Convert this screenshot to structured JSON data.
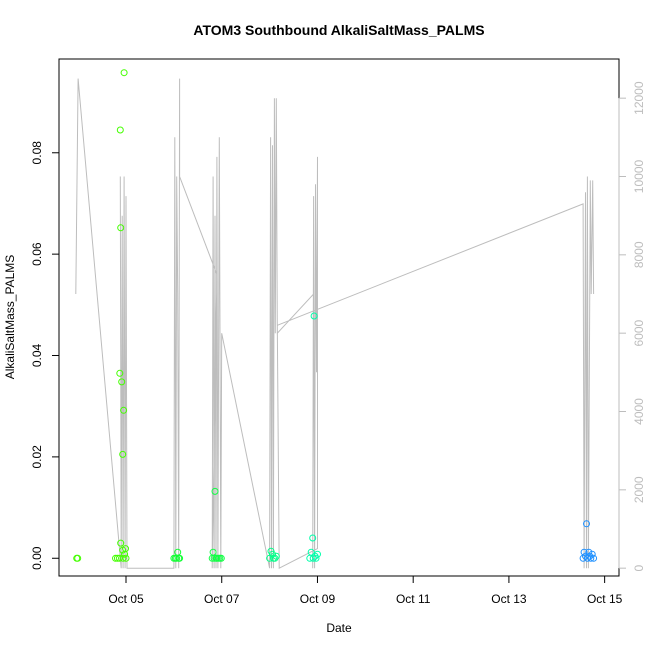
{
  "chart_data": {
    "type": "scatter",
    "title": "ATOM3 Southbound AlkaliSaltMass_PALMS",
    "xlabel": "Date",
    "ylabel": "AlkaliSaltMass_PALMS",
    "y2label": "",
    "x_unit": "day of October 2017",
    "xlim": [
      3.6,
      15.3
    ],
    "ylim": [
      -0.0035,
      0.0985
    ],
    "y2lim": [
      -200,
      13000
    ],
    "x_ticks": [
      5,
      7,
      9,
      11,
      13,
      15
    ],
    "x_tick_labels": [
      "Oct 05",
      "Oct 07",
      "Oct 09",
      "Oct 11",
      "Oct 13",
      "Oct 15"
    ],
    "y_ticks": [
      0.0,
      0.02,
      0.04,
      0.06,
      0.08
    ],
    "y_tick_labels": [
      "0.00",
      "0.02",
      "0.04",
      "0.06",
      "0.08"
    ],
    "y2_ticks": [
      0,
      2000,
      4000,
      6000,
      8000,
      10000,
      12000
    ],
    "y2_tick_labels": [
      "0",
      "2000",
      "4000",
      "6000",
      "8000",
      "10000",
      "12000"
    ],
    "grid": false,
    "legend": "none",
    "colors": {
      "altitude_line": "#bdbdbd",
      "points_early": "#33ff00",
      "points_mid": "#00ff55",
      "points_late": "#00ffaa",
      "points_last": "#1e90ff"
    },
    "series": [
      {
        "kind": "scatter",
        "axis": "left",
        "points": [
          {
            "x": 3.97,
            "y": 0.0,
            "c": "#44ff00"
          },
          {
            "x": 3.99,
            "y": 0.0,
            "c": "#44ff00"
          },
          {
            "x": 4.78,
            "y": 0.0,
            "c": "#44ff00"
          },
          {
            "x": 4.82,
            "y": 0.0,
            "c": "#44ff00"
          },
          {
            "x": 4.86,
            "y": 0.0,
            "c": "#44ff00"
          },
          {
            "x": 4.87,
            "y": 0.0365,
            "c": "#44ff00"
          },
          {
            "x": 4.88,
            "y": 0.0845,
            "c": "#44ff00"
          },
          {
            "x": 4.89,
            "y": 0.0652,
            "c": "#44ff00"
          },
          {
            "x": 4.89,
            "y": 0.003,
            "c": "#44ff00"
          },
          {
            "x": 4.91,
            "y": 0.0348,
            "c": "#44ff00"
          },
          {
            "x": 4.93,
            "y": 0.0205,
            "c": "#44ff00"
          },
          {
            "x": 4.93,
            "y": 0.0016,
            "c": "#44ff00"
          },
          {
            "x": 4.94,
            "y": 0.0,
            "c": "#44ff00"
          },
          {
            "x": 4.95,
            "y": 0.0292,
            "c": "#44ff00"
          },
          {
            "x": 4.96,
            "y": 0.0958,
            "c": "#44ff00"
          },
          {
            "x": 4.97,
            "y": 0.0008,
            "c": "#44ff00"
          },
          {
            "x": 4.99,
            "y": 0.0019,
            "c": "#44ff00"
          },
          {
            "x": 5.0,
            "y": 0.0,
            "c": "#44ff00"
          },
          {
            "x": 6.0,
            "y": 0.0,
            "c": "#11ff33"
          },
          {
            "x": 6.03,
            "y": 0.0,
            "c": "#11ff33"
          },
          {
            "x": 6.06,
            "y": 0.0,
            "c": "#11ff33"
          },
          {
            "x": 6.08,
            "y": 0.0012,
            "c": "#11ff33"
          },
          {
            "x": 6.1,
            "y": 0.0,
            "c": "#11ff33"
          },
          {
            "x": 6.12,
            "y": 0.0,
            "c": "#11ff33"
          },
          {
            "x": 6.8,
            "y": 0.0,
            "c": "#11ff44"
          },
          {
            "x": 6.82,
            "y": 0.0012,
            "c": "#11ff44"
          },
          {
            "x": 6.84,
            "y": 0.0,
            "c": "#11ff44"
          },
          {
            "x": 6.86,
            "y": 0.0132,
            "c": "#11ff44"
          },
          {
            "x": 6.88,
            "y": 0.0,
            "c": "#11ff44"
          },
          {
            "x": 6.9,
            "y": 0.0,
            "c": "#11ff44"
          },
          {
            "x": 6.93,
            "y": 0.0,
            "c": "#11ff44"
          },
          {
            "x": 6.96,
            "y": 0.0,
            "c": "#11ff44"
          },
          {
            "x": 6.99,
            "y": 0.0,
            "c": "#11ff44"
          },
          {
            "x": 8.0,
            "y": 0.0,
            "c": "#00ff88"
          },
          {
            "x": 8.03,
            "y": 0.0014,
            "c": "#00ff88"
          },
          {
            "x": 8.06,
            "y": 0.0008,
            "c": "#00ff88"
          },
          {
            "x": 8.08,
            "y": 0.0,
            "c": "#00ff88"
          },
          {
            "x": 8.11,
            "y": 0.0,
            "c": "#00ff88"
          },
          {
            "x": 8.14,
            "y": 0.0004,
            "c": "#00ff88"
          },
          {
            "x": 8.84,
            "y": 0.0,
            "c": "#00ffaa"
          },
          {
            "x": 8.87,
            "y": 0.0012,
            "c": "#00ffaa"
          },
          {
            "x": 8.9,
            "y": 0.004,
            "c": "#00ffaa"
          },
          {
            "x": 8.91,
            "y": 0.0,
            "c": "#00ffaa"
          },
          {
            "x": 8.93,
            "y": 0.0478,
            "c": "#00ffaa"
          },
          {
            "x": 8.95,
            "y": 0.0004,
            "c": "#00ffaa"
          },
          {
            "x": 8.97,
            "y": 0.0,
            "c": "#00ffaa"
          },
          {
            "x": 9.0,
            "y": 0.0008,
            "c": "#00ffaa"
          },
          {
            "x": 14.55,
            "y": 0.0,
            "c": "#1e90ff"
          },
          {
            "x": 14.57,
            "y": 0.0012,
            "c": "#1e90ff"
          },
          {
            "x": 14.6,
            "y": 0.0004,
            "c": "#1e90ff"
          },
          {
            "x": 14.62,
            "y": 0.0068,
            "c": "#1e90ff"
          },
          {
            "x": 14.64,
            "y": 0.0,
            "c": "#1e90ff"
          },
          {
            "x": 14.67,
            "y": 0.0012,
            "c": "#1e90ff"
          },
          {
            "x": 14.69,
            "y": 0.0004,
            "c": "#1e90ff"
          },
          {
            "x": 14.71,
            "y": 0.0,
            "c": "#1e90ff"
          },
          {
            "x": 14.74,
            "y": 0.0008,
            "c": "#1e90ff"
          },
          {
            "x": 14.77,
            "y": 0.0,
            "c": "#1e90ff"
          }
        ]
      },
      {
        "kind": "line",
        "axis": "right",
        "points": [
          [
            3.95,
            7000
          ],
          [
            4.0,
            12500
          ],
          [
            4.9,
            0
          ],
          [
            4.88,
            10000
          ],
          [
            4.9,
            0
          ],
          [
            4.92,
            9000
          ],
          [
            4.94,
            0
          ],
          [
            4.96,
            10000
          ],
          [
            4.98,
            0
          ],
          [
            5.0,
            9500
          ],
          [
            5.02,
            0
          ],
          [
            6.0,
            0
          ],
          [
            6.02,
            11000
          ],
          [
            6.04,
            0
          ],
          [
            6.06,
            10000
          ],
          [
            6.08,
            7000
          ],
          [
            6.1,
            0
          ],
          [
            6.12,
            12500
          ],
          [
            6.12,
            10000
          ],
          [
            6.9,
            7500
          ],
          [
            6.8,
            0
          ],
          [
            6.82,
            10000
          ],
          [
            6.84,
            0
          ],
          [
            6.86,
            9000
          ],
          [
            6.88,
            0
          ],
          [
            6.9,
            10500
          ],
          [
            6.92,
            0
          ],
          [
            6.95,
            11000
          ],
          [
            6.98,
            0
          ],
          [
            7.0,
            6000
          ],
          [
            8.0,
            0
          ],
          [
            8.02,
            11000
          ],
          [
            8.04,
            0
          ],
          [
            8.06,
            10800
          ],
          [
            8.08,
            0
          ],
          [
            8.1,
            12000
          ],
          [
            8.12,
            6000
          ],
          [
            8.14,
            12000
          ],
          [
            8.16,
            6000
          ],
          [
            8.92,
            7000
          ],
          [
            8.9,
            0
          ],
          [
            8.92,
            9500
          ],
          [
            8.94,
            0
          ],
          [
            8.96,
            9800
          ],
          [
            8.98,
            5000
          ],
          [
            9.0,
            10500
          ],
          [
            9.0,
            500
          ],
          [
            8.2,
            0
          ],
          [
            8.16,
            6200
          ],
          [
            14.55,
            9300
          ],
          [
            14.57,
            0
          ],
          [
            14.6,
            9600
          ],
          [
            14.62,
            0
          ],
          [
            14.64,
            10000
          ],
          [
            14.66,
            0
          ],
          [
            14.7,
            9900
          ],
          [
            14.72,
            7000
          ],
          [
            14.75,
            9900
          ],
          [
            14.77,
            7000
          ]
        ]
      }
    ]
  }
}
